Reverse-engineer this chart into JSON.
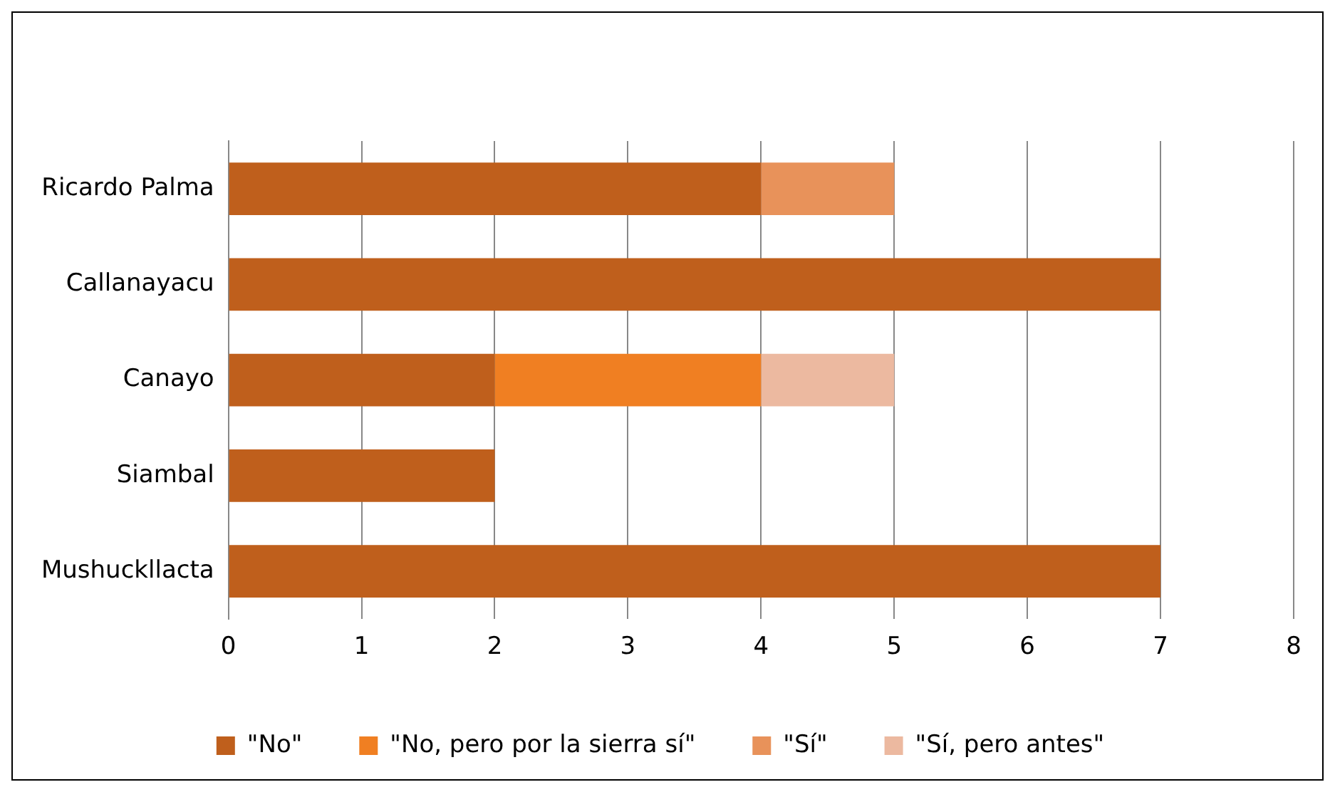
{
  "chart_data": {
    "type": "bar",
    "orientation": "horizontal",
    "stacked": true,
    "categories": [
      "Ricardo Palma",
      "Callanayacu",
      "Canayo",
      "Siambal",
      "Mushuckllacta"
    ],
    "series": [
      {
        "name": "\"No\"",
        "color": "#bf5f1c",
        "values": [
          4,
          7,
          2,
          2,
          7
        ]
      },
      {
        "name": "\"No, pero por la sierra sí\"",
        "color": "#f07f22",
        "values": [
          0,
          0,
          2,
          0,
          0
        ]
      },
      {
        "name": "\"Sí\"",
        "color": "#e8925a",
        "values": [
          1,
          0,
          0,
          0,
          0
        ]
      },
      {
        "name": "\"Sí, pero antes\"",
        "color": "#ecb9a0",
        "values": [
          0,
          0,
          1,
          0,
          0
        ]
      }
    ],
    "xlim": [
      0,
      8
    ],
    "xticks": [
      0,
      1,
      2,
      3,
      4,
      5,
      6,
      7,
      8
    ],
    "grid": "x",
    "legend": "bottom"
  }
}
